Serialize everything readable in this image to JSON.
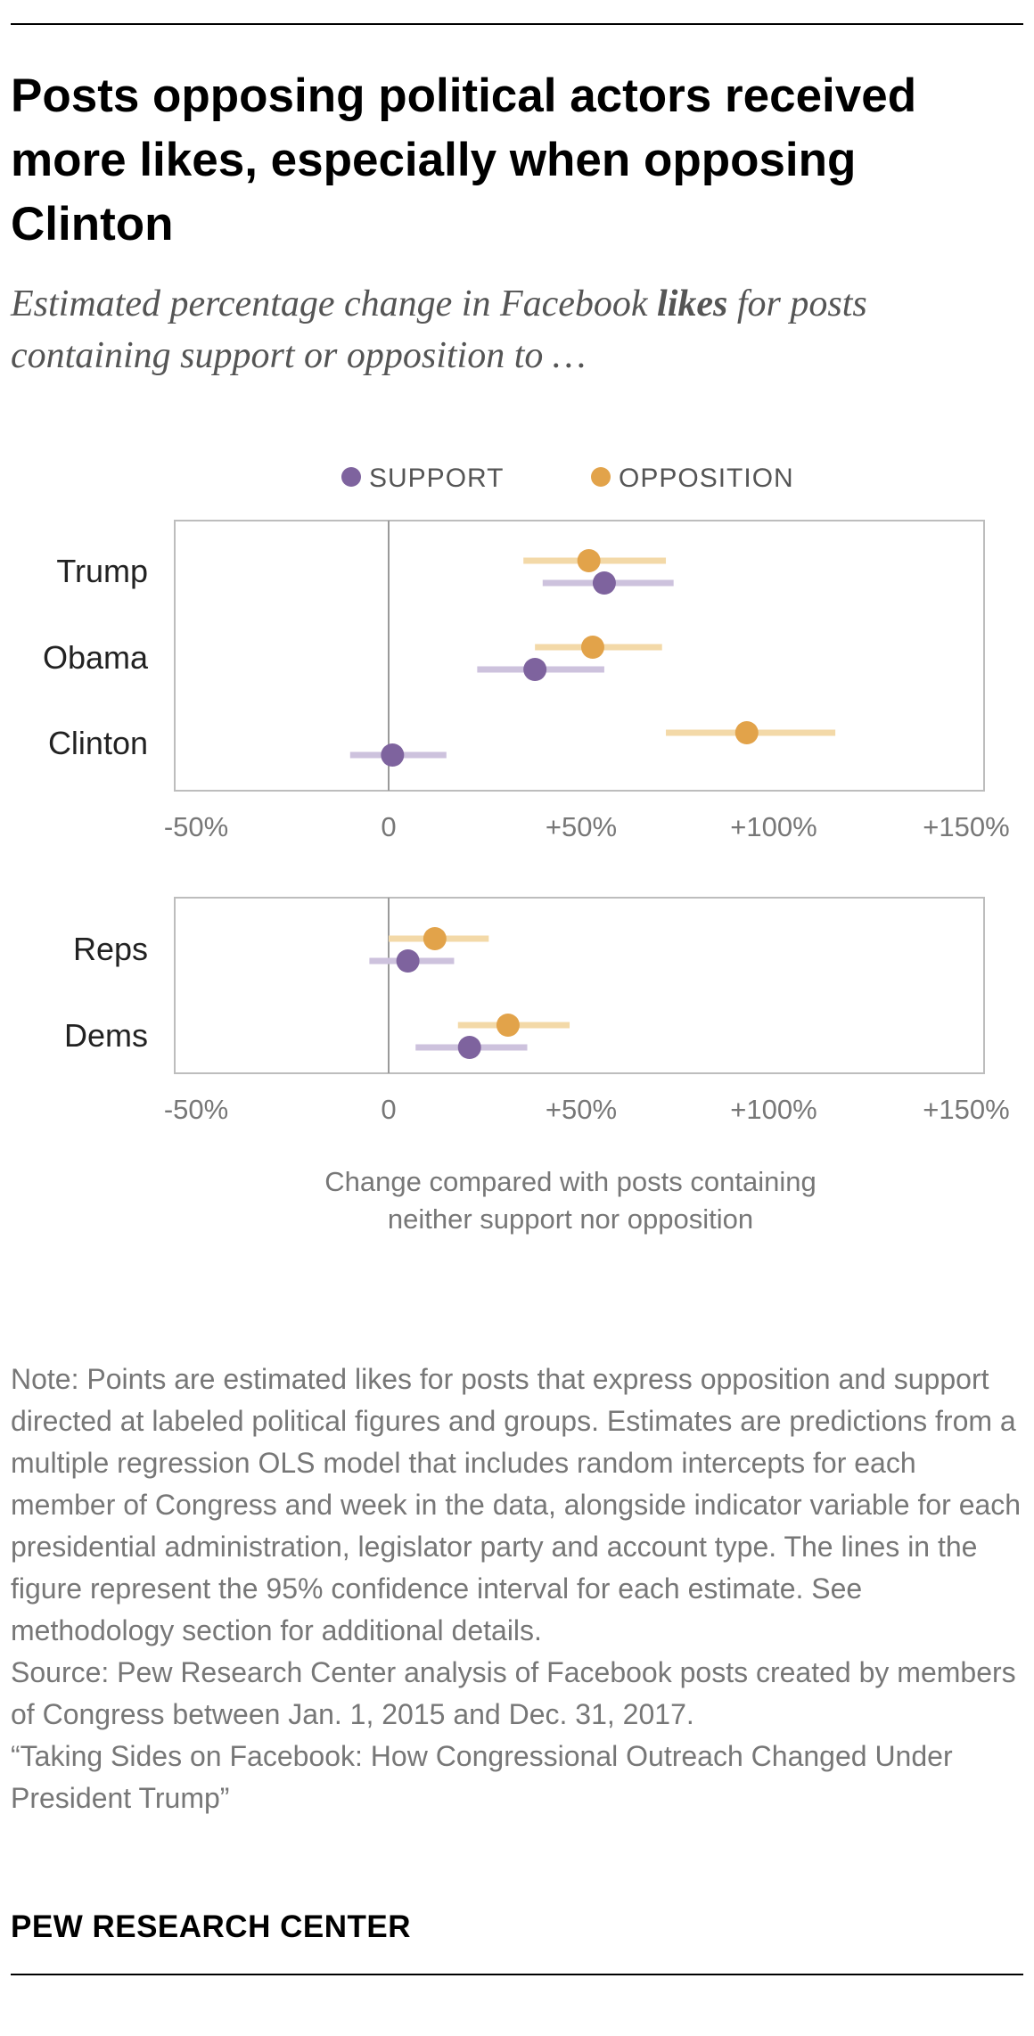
{
  "header": {
    "title": "Posts opposing political actors received more likes, especially when opposing Clinton",
    "subtitle_pre": "Estimated percentage change in Facebook ",
    "subtitle_bold": "likes",
    "subtitle_post": " for posts containing support or opposition to …"
  },
  "chart_data": {
    "type": "dot-range",
    "legend": [
      {
        "name": "SUPPORT",
        "color": "#7e639e"
      },
      {
        "name": "OPPOSITION",
        "color": "#e2a34a"
      }
    ],
    "range_colors": {
      "SUPPORT": "#cdc2dd",
      "OPPOSITION": "#f3d9a8"
    },
    "xlim": [
      -55,
      155
    ],
    "ticks": [
      -50,
      0,
      50,
      100,
      150
    ],
    "tick_labels": [
      "-50%",
      "0",
      "+50%",
      "+100%",
      "+150%"
    ],
    "xlabel": "Change compared with posts containing neither support nor opposition",
    "xlabel_lines": [
      "Change compared with posts containing",
      "neither support nor opposition"
    ],
    "panels": [
      {
        "name": "individuals",
        "rows": [
          {
            "label": "Trump",
            "opposition": {
              "value": 52,
              "low": 35,
              "high": 72
            },
            "support": {
              "value": 56,
              "low": 40,
              "high": 74
            }
          },
          {
            "label": "Obama",
            "opposition": {
              "value": 53,
              "low": 38,
              "high": 71
            },
            "support": {
              "value": 38,
              "low": 23,
              "high": 56
            }
          },
          {
            "label": "Clinton",
            "opposition": {
              "value": 93,
              "low": 72,
              "high": 116
            },
            "support": {
              "value": 1,
              "low": -10,
              "high": 15
            }
          }
        ]
      },
      {
        "name": "parties",
        "rows": [
          {
            "label": "Reps",
            "opposition": {
              "value": 12,
              "low": 0,
              "high": 26
            },
            "support": {
              "value": 5,
              "low": -5,
              "high": 17
            }
          },
          {
            "label": "Dems",
            "opposition": {
              "value": 31,
              "low": 18,
              "high": 47
            },
            "support": {
              "value": 21,
              "low": 7,
              "high": 36
            }
          }
        ]
      }
    ]
  },
  "notes": {
    "note": "Note: Points are estimated likes for posts that express opposition and support directed at labeled political figures and groups. Estimates are predictions from a multiple regression OLS model that includes random intercepts for each member of Congress and week in the data, alongside indicator variable for each presidential administration, legislator party and account type. The lines in the figure represent the 95% confidence interval for each estimate. See methodology section for additional details.",
    "source": "Source: Pew Research Center analysis of Facebook posts created by members of Congress between Jan. 1, 2015 and Dec. 31, 2017.",
    "report": "“Taking Sides on Facebook: How Congressional Outreach Changed Under President Trump”"
  },
  "footer": {
    "brand": "PEW RESEARCH CENTER"
  }
}
